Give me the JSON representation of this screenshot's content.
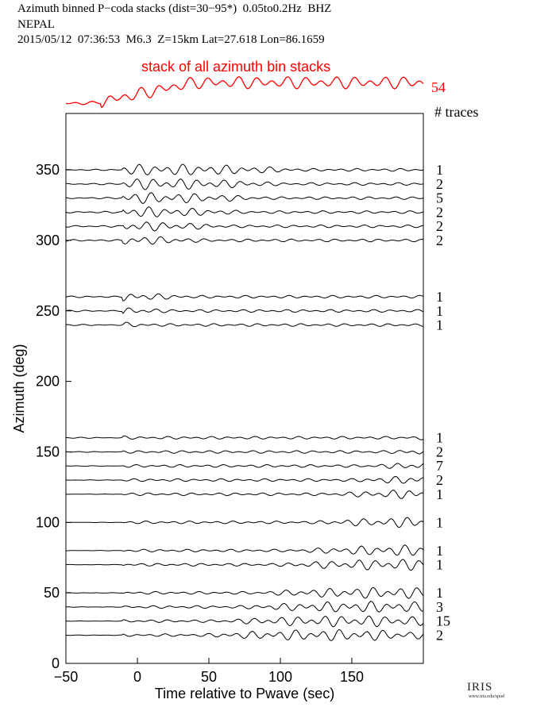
{
  "header": {
    "line1": "Azimuth binned P−coda stacks (dist=30−95*)  0.05to0.2Hz  BHZ",
    "line2": "NEPAL",
    "line3": "2015/05/12  07:36:53  M6.3  Z=15km Lat=27.618 Lon=86.1659"
  },
  "stack_label": "stack of all azimuth bin stacks",
  "stack_count": "54",
  "traces_label": "# traces",
  "colors": {
    "stack": "#ff0000",
    "trace": "#000000",
    "axis": "#000000"
  },
  "logo": {
    "text": "IRIS",
    "url": "www.iris.edu/spud"
  },
  "chart_data": {
    "type": "line",
    "title": "",
    "xlabel": "Time relative to Pwave (sec)",
    "ylabel": "Azimuth (deg)",
    "xlim": [
      -50,
      200
    ],
    "ylim": [
      0,
      390
    ],
    "xticks": [
      -50,
      0,
      50,
      100,
      150
    ],
    "yticks": [
      0,
      50,
      100,
      150,
      200,
      250,
      300,
      350
    ],
    "grid": false,
    "traces": [
      {
        "azimuth": 350,
        "count": "1"
      },
      {
        "azimuth": 340,
        "count": "2"
      },
      {
        "azimuth": 330,
        "count": "5"
      },
      {
        "azimuth": 320,
        "count": "2"
      },
      {
        "azimuth": 310,
        "count": "2"
      },
      {
        "azimuth": 300,
        "count": "2"
      },
      {
        "azimuth": 260,
        "count": "1"
      },
      {
        "azimuth": 250,
        "count": "1"
      },
      {
        "azimuth": 240,
        "count": "1"
      },
      {
        "azimuth": 160,
        "count": "1"
      },
      {
        "azimuth": 150,
        "count": "2"
      },
      {
        "azimuth": 140,
        "count": "7"
      },
      {
        "azimuth": 130,
        "count": "2"
      },
      {
        "azimuth": 120,
        "count": "1"
      },
      {
        "azimuth": 100,
        "count": "1"
      },
      {
        "azimuth": 80,
        "count": "1"
      },
      {
        "azimuth": 70,
        "count": "1"
      },
      {
        "azimuth": 50,
        "count": "1"
      },
      {
        "azimuth": 40,
        "count": "3"
      },
      {
        "azimuth": 30,
        "count": "15"
      },
      {
        "azimuth": 20,
        "count": "2"
      }
    ]
  }
}
